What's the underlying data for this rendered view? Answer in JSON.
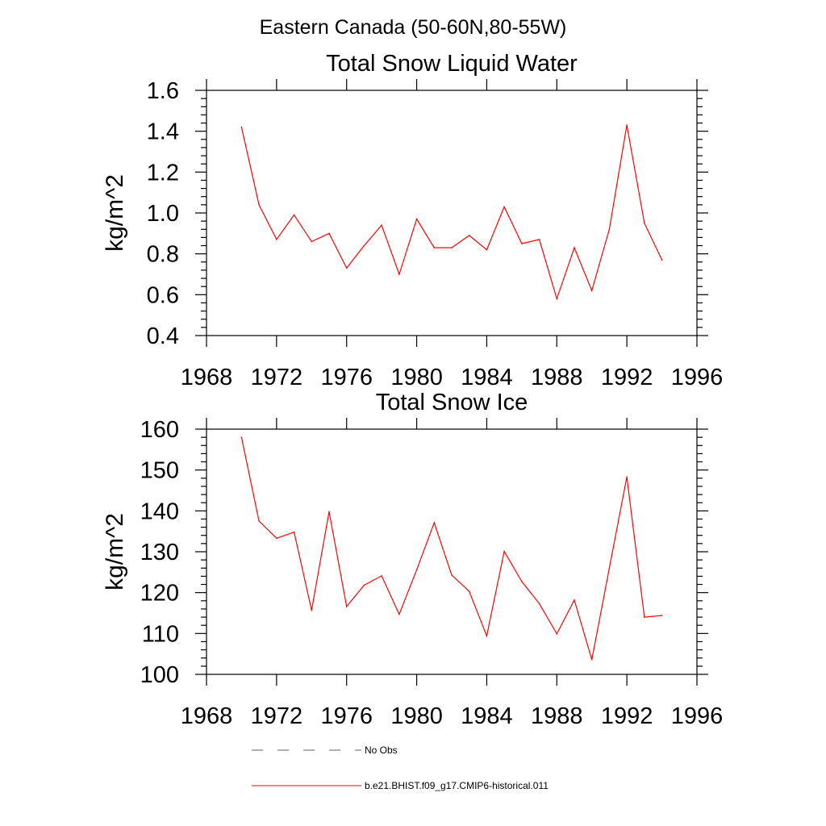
{
  "figure_title": "Eastern Canada (50-60N,80-55W)",
  "chart_data": [
    {
      "type": "line",
      "title": "Total Snow Liquid Water",
      "xlabel": "",
      "ylabel": "kg/m^2",
      "xlim": [
        1968,
        1996
      ],
      "ylim": [
        0.4,
        1.6
      ],
      "xticks": [
        1968,
        1972,
        1976,
        1980,
        1984,
        1988,
        1992,
        1996
      ],
      "xtick_labels": [
        "1968",
        "1972",
        "1976",
        "1980",
        "1984",
        "1988",
        "1992",
        "1996"
      ],
      "yticks": [
        0.4,
        0.6,
        0.8,
        1.0,
        1.2,
        1.4,
        1.6
      ],
      "ytick_labels": [
        "0.4",
        "0.6",
        "0.8",
        "1.0",
        "1.2",
        "1.4",
        "1.6"
      ],
      "grid": false,
      "series": [
        {
          "name": "b.e21.BHIST.f09_g17.CMIP6-historical.011",
          "color": "#ff0000",
          "x": [
            1970,
            1971,
            1972,
            1973,
            1974,
            1975,
            1976,
            1977,
            1978,
            1979,
            1980,
            1981,
            1982,
            1983,
            1984,
            1985,
            1986,
            1987,
            1988,
            1989,
            1990,
            1991,
            1992,
            1993,
            1994
          ],
          "y": [
            1.42,
            1.04,
            0.87,
            0.99,
            0.86,
            0.9,
            0.73,
            0.84,
            0.94,
            0.7,
            0.97,
            0.83,
            0.83,
            0.89,
            0.82,
            1.03,
            0.85,
            0.87,
            0.58,
            0.83,
            0.62,
            0.92,
            1.43,
            0.95,
            0.77
          ]
        }
      ]
    },
    {
      "type": "line",
      "title": "Total Snow Ice",
      "xlabel": "",
      "ylabel": "kg/m^2",
      "xlim": [
        1968,
        1996
      ],
      "ylim": [
        100,
        160
      ],
      "xticks": [
        1968,
        1972,
        1976,
        1980,
        1984,
        1988,
        1992,
        1996
      ],
      "xtick_labels": [
        "1968",
        "1972",
        "1976",
        "1980",
        "1984",
        "1988",
        "1992",
        "1996"
      ],
      "yticks": [
        100,
        110,
        120,
        130,
        140,
        150,
        160
      ],
      "ytick_labels": [
        "100",
        "110",
        "120",
        "130",
        "140",
        "150",
        "160"
      ],
      "grid": false,
      "series": [
        {
          "name": "b.e21.BHIST.f09_g17.CMIP6-historical.011",
          "color": "#ff0000",
          "x": [
            1970,
            1971,
            1972,
            1973,
            1974,
            1975,
            1976,
            1977,
            1978,
            1979,
            1980,
            1981,
            1982,
            1983,
            1984,
            1985,
            1986,
            1987,
            1988,
            1989,
            1990,
            1991,
            1992,
            1993,
            1994
          ],
          "y": [
            158,
            137.5,
            133.3,
            134.8,
            115.7,
            139.8,
            116.6,
            121.8,
            124.1,
            114.7,
            125.6,
            137.1,
            124.3,
            120.3,
            109.4,
            130.1,
            122.7,
            117.3,
            109.9,
            118.2,
            103.6,
            126.0,
            148.3,
            114.0,
            114.4
          ]
        }
      ]
    }
  ],
  "legend": {
    "placement": "bottom",
    "entries": [
      {
        "label": "No Obs",
        "color": "#5a5a8a",
        "style": "dashed"
      },
      {
        "label": "b.e21.BHIST.f09_g17.CMIP6-historical.011",
        "color": "#ff0000",
        "style": "solid"
      }
    ]
  }
}
